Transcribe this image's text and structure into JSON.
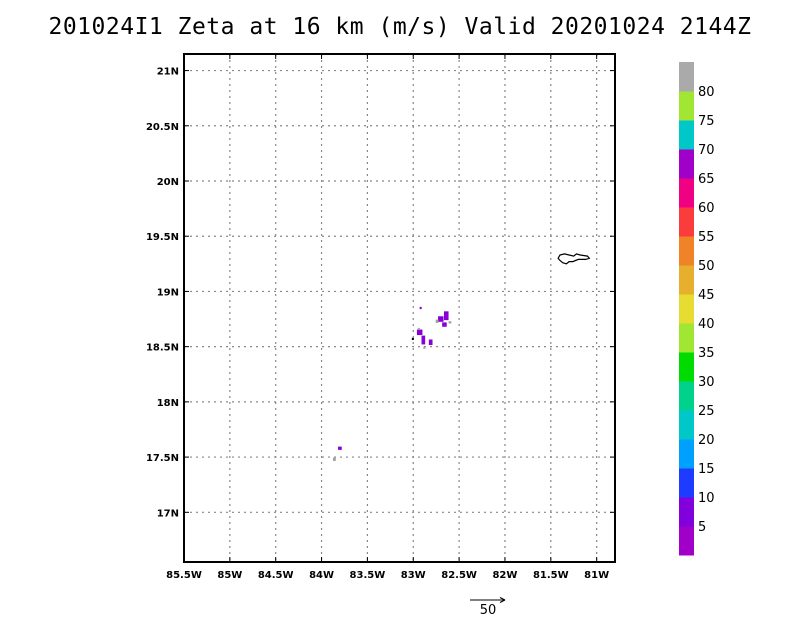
{
  "title": "201024I1 Zeta at 16 km (m/s) Valid 20201024 2144Z",
  "map": {
    "lon_range": [
      -85.5,
      -80.8
    ],
    "lat_range": [
      16.55,
      21.15
    ],
    "lon_ticks": [
      {
        "value": -85.5,
        "label": "85.5W"
      },
      {
        "value": -85.0,
        "label": "85W"
      },
      {
        "value": -84.5,
        "label": "84.5W"
      },
      {
        "value": -84.0,
        "label": "84W"
      },
      {
        "value": -83.5,
        "label": "83.5W"
      },
      {
        "value": -83.0,
        "label": "83W"
      },
      {
        "value": -82.5,
        "label": "82.5W"
      },
      {
        "value": -82.0,
        "label": "82W"
      },
      {
        "value": -81.5,
        "label": "81.5W"
      },
      {
        "value": -81.0,
        "label": "81W"
      }
    ],
    "lat_ticks": [
      {
        "value": 17.0,
        "label": "17N"
      },
      {
        "value": 17.5,
        "label": "17.5N"
      },
      {
        "value": 18.0,
        "label": "18N"
      },
      {
        "value": 18.5,
        "label": "18.5N"
      },
      {
        "value": 19.0,
        "label": "19N"
      },
      {
        "value": 19.5,
        "label": "19.5N"
      },
      {
        "value": 20.0,
        "label": "20N"
      },
      {
        "value": 20.5,
        "label": "20.5N"
      },
      {
        "value": 21.0,
        "label": "21N"
      }
    ],
    "grid": true,
    "island_outline": [
      [
        -81.4,
        19.33
      ],
      [
        -81.35,
        19.34
      ],
      [
        -81.3,
        19.33
      ],
      [
        -81.25,
        19.32
      ],
      [
        -81.22,
        19.34
      ],
      [
        -81.18,
        19.33
      ],
      [
        -81.1,
        19.32
      ],
      [
        -81.08,
        19.3
      ],
      [
        -81.12,
        19.29
      ],
      [
        -81.2,
        19.29
      ],
      [
        -81.26,
        19.27
      ],
      [
        -81.3,
        19.27
      ],
      [
        -81.33,
        19.25
      ],
      [
        -81.37,
        19.26
      ],
      [
        -81.4,
        19.28
      ],
      [
        -81.42,
        19.3
      ],
      [
        -81.4,
        19.33
      ]
    ],
    "wind_patches": [
      {
        "lon": -82.64,
        "lat": 18.78,
        "dlon": 0.05,
        "dlat": 0.08,
        "color": "#8a00d4"
      },
      {
        "lon": -82.7,
        "lat": 18.75,
        "dlon": 0.06,
        "dlat": 0.05,
        "color": "#8a00d4"
      },
      {
        "lon": -82.66,
        "lat": 18.7,
        "dlon": 0.05,
        "dlat": 0.04,
        "color": "#8a00d4"
      },
      {
        "lon": -82.74,
        "lat": 18.73,
        "dlon": 0.03,
        "dlat": 0.03,
        "color": "#a0a0a0"
      },
      {
        "lon": -82.6,
        "lat": 18.72,
        "dlon": 0.03,
        "dlat": 0.02,
        "color": "#a0a0a0"
      },
      {
        "lon": -82.93,
        "lat": 18.63,
        "dlon": 0.06,
        "dlat": 0.05,
        "color": "#8a00d4"
      },
      {
        "lon": -82.89,
        "lat": 18.56,
        "dlon": 0.04,
        "dlat": 0.08,
        "color": "#8a00d4"
      },
      {
        "lon": -82.81,
        "lat": 18.54,
        "dlon": 0.04,
        "dlat": 0.05,
        "color": "#8a00d4"
      },
      {
        "lon": -82.94,
        "lat": 18.66,
        "dlon": 0.02,
        "dlat": 0.02,
        "color": "#a0a0a0"
      },
      {
        "lon": -82.88,
        "lat": 18.49,
        "dlon": 0.02,
        "dlat": 0.02,
        "color": "#a0a0a0"
      },
      {
        "lon": -82.92,
        "lat": 18.85,
        "dlon": 0.02,
        "dlat": 0.02,
        "color": "#8a00d4"
      },
      {
        "lon": -83.01,
        "lat": 18.57,
        "dlon": 0.01,
        "dlat": 0.02,
        "color": "#000000"
      },
      {
        "lon": -83.8,
        "lat": 17.58,
        "dlon": 0.04,
        "dlat": 0.03,
        "color": "#8a00d4"
      },
      {
        "lon": -83.86,
        "lat": 17.48,
        "dlon": 0.03,
        "dlat": 0.03,
        "color": "#a0a0a0"
      }
    ]
  },
  "colorbar": {
    "colors": [
      "#a000c8",
      "#8200dc",
      "#1e3cff",
      "#00a0ff",
      "#00c8c8",
      "#00d28c",
      "#00dc00",
      "#a0e632",
      "#e6dc32",
      "#e6af2d",
      "#f08228",
      "#fa3c3c",
      "#f00082",
      "#a000c8",
      "#00c8c8",
      "#a0e632",
      "#aaaaaa"
    ],
    "labels": [
      "5",
      "10",
      "15",
      "20",
      "25",
      "30",
      "35",
      "40",
      "45",
      "50",
      "55",
      "60",
      "65",
      "70",
      "75",
      "80"
    ]
  },
  "vector_key": {
    "label": "50"
  }
}
